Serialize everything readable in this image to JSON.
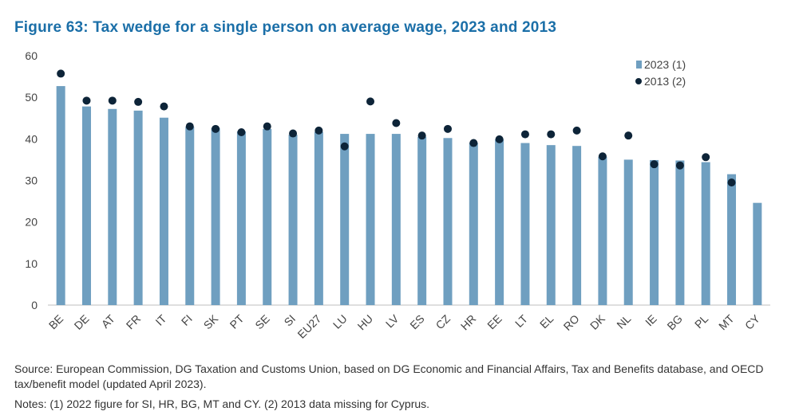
{
  "title": "Figure 63: Tax wedge for a single person on average wage, 2023 and 2013",
  "source": "Source: European Commission, DG Taxation and Customs Union, based on DG Economic and Financial Affairs, Tax and Benefits database, and OECD tax/benefit model (updated April 2023).",
  "notes": "Notes: (1) 2022 figure for SI, HR, BG, MT and CY. (2) 2013 data missing for Cyprus.",
  "colors": {
    "bar": "#6f9fc0",
    "dot": "#0d2438",
    "title": "#1b6fa8"
  },
  "chart_data": {
    "type": "bar",
    "title": "Figure 63: Tax wedge for a single person on average wage, 2023 and 2013",
    "xlabel": "",
    "ylabel": "",
    "ylim": [
      0,
      60
    ],
    "yticks": [
      0,
      10,
      20,
      30,
      40,
      50,
      60
    ],
    "legend_position": "top-right",
    "categories": [
      "BE",
      "DE",
      "AT",
      "FR",
      "IT",
      "FI",
      "SK",
      "PT",
      "SE",
      "SI",
      "EU27",
      "LU",
      "HU",
      "LV",
      "ES",
      "CZ",
      "HR",
      "EE",
      "LT",
      "EL",
      "RO",
      "DK",
      "NL",
      "IE",
      "BG",
      "PL",
      "MT",
      "CY"
    ],
    "series": [
      {
        "name": "2023 (1)",
        "kind": "bar",
        "values": [
          52.7,
          47.8,
          47.2,
          46.8,
          45.1,
          42.9,
          42.6,
          41.8,
          42.4,
          41.0,
          41.7,
          41.2,
          41.2,
          41.2,
          40.5,
          40.2,
          39.1,
          39.9,
          39.0,
          38.5,
          38.3,
          35.7,
          35.0,
          34.9,
          34.8,
          34.4,
          31.5,
          24.6
        ]
      },
      {
        "name": "2013 (2)",
        "kind": "dot",
        "values": [
          55.7,
          49.2,
          49.2,
          48.9,
          47.8,
          43.0,
          42.4,
          41.6,
          43.0,
          41.3,
          42.0,
          38.2,
          49.0,
          43.8,
          40.8,
          42.4,
          39.0,
          39.9,
          41.1,
          41.1,
          42.0,
          35.8,
          40.8,
          33.9,
          33.6,
          35.6,
          29.5,
          null
        ]
      }
    ]
  }
}
